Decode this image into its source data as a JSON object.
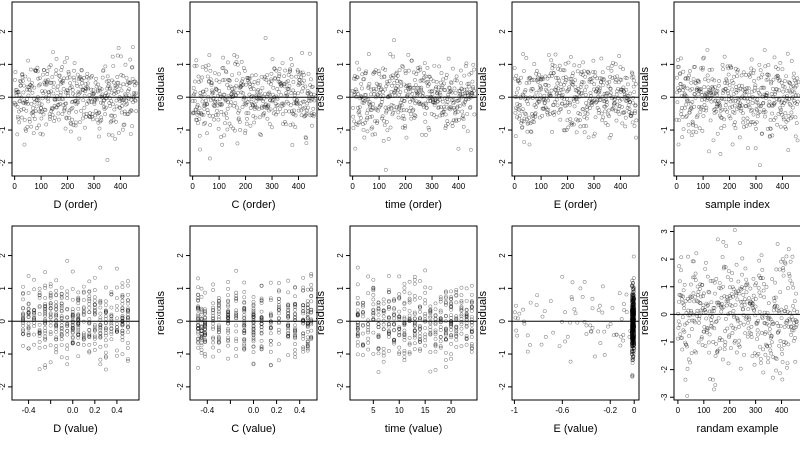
{
  "figure": {
    "rows": 2,
    "cols": 5,
    "point_color": "#000000",
    "point_opacity": 0.45,
    "frame_color": "#000000",
    "reference_line_y": 0
  },
  "chart_data": [
    {
      "type": "scatter",
      "xlabel": "D (order)",
      "ylabel": "residuals",
      "xlim": [
        -10,
        470
      ],
      "ylim": [
        -2.4,
        2.9
      ],
      "xticks": [
        0,
        100,
        200,
        300,
        400
      ],
      "yticks": [
        -2,
        -1,
        0,
        1,
        2
      ],
      "x_distribution": "uniform",
      "x_range": [
        0,
        460
      ],
      "n": 460
    },
    {
      "type": "scatter",
      "xlabel": "C (order)",
      "ylabel": "residuals",
      "xlim": [
        -10,
        470
      ],
      "ylim": [
        -2.4,
        2.9
      ],
      "xticks": [
        0,
        100,
        200,
        300,
        400
      ],
      "yticks": [
        -2,
        -1,
        0,
        1,
        2
      ],
      "x_distribution": "uniform",
      "x_range": [
        0,
        460
      ],
      "n": 460
    },
    {
      "type": "scatter",
      "xlabel": "time (order)",
      "ylabel": "residuals",
      "xlim": [
        -10,
        470
      ],
      "ylim": [
        -2.4,
        2.9
      ],
      "xticks": [
        0,
        100,
        200,
        300,
        400
      ],
      "yticks": [
        -2,
        -1,
        0,
        1,
        2
      ],
      "x_distribution": "uniform",
      "x_range": [
        0,
        460
      ],
      "n": 460
    },
    {
      "type": "scatter",
      "xlabel": "E (order)",
      "ylabel": "residuals",
      "xlim": [
        -10,
        470
      ],
      "ylim": [
        -2.4,
        2.9
      ],
      "xticks": [
        0,
        100,
        200,
        300,
        400
      ],
      "yticks": [
        -2,
        -1,
        0,
        1,
        2
      ],
      "x_distribution": "uniform",
      "x_range": [
        0,
        460
      ],
      "n": 460
    },
    {
      "type": "scatter",
      "xlabel": "sample index",
      "ylabel": "residuals",
      "xlim": [
        -10,
        470
      ],
      "ylim": [
        -2.4,
        2.9
      ],
      "xticks": [
        0,
        100,
        200,
        300,
        400
      ],
      "yticks": [
        -2,
        -1,
        0,
        1,
        2
      ],
      "x_distribution": "uniform",
      "x_range": [
        0,
        460
      ],
      "n": 460
    },
    {
      "type": "scatter",
      "xlabel": "D (value)",
      "ylabel": "residuals",
      "xlim": [
        -0.55,
        0.6
      ],
      "ylim": [
        -2.4,
        2.9
      ],
      "xticks": [
        -0.4,
        -0.2,
        0.0,
        0.2,
        0.4
      ],
      "xtick_labels": [
        "-0.4",
        "",
        "0.0",
        "0.2",
        "0.4"
      ],
      "yticks": [
        -2,
        -1,
        0,
        1,
        2
      ],
      "x_distribution": "levels",
      "x_levels": [
        -0.45,
        -0.4,
        -0.35,
        -0.3,
        -0.25,
        -0.2,
        -0.15,
        -0.1,
        -0.05,
        0.0,
        0.05,
        0.1,
        0.15,
        0.2,
        0.25,
        0.3,
        0.35,
        0.4,
        0.45,
        0.5
      ],
      "n": 460
    },
    {
      "type": "scatter",
      "xlabel": "C (value)",
      "ylabel": "residuals",
      "xlim": [
        -0.55,
        0.55
      ],
      "ylim": [
        -2.4,
        2.9
      ],
      "xticks": [
        -0.4,
        -0.2,
        0.0,
        0.2,
        0.4
      ],
      "xtick_labels": [
        "-0.4",
        "",
        "0.0",
        "0.2",
        "0.4"
      ],
      "yticks": [
        -2,
        -1,
        0,
        1,
        2
      ],
      "x_distribution": "levels",
      "x_levels": [
        -0.48,
        -0.45,
        -0.42,
        -0.35,
        -0.3,
        -0.22,
        -0.15,
        -0.08,
        0.0,
        0.07,
        0.15,
        0.22,
        0.3,
        0.36,
        0.43,
        0.47,
        0.5
      ],
      "n": 460
    },
    {
      "type": "scatter",
      "xlabel": "time (value)",
      "ylabel": "residuals",
      "xlim": [
        0.5,
        25
      ],
      "ylim": [
        -2.4,
        2.9
      ],
      "xticks": [
        5,
        10,
        15,
        20
      ],
      "yticks": [
        -2,
        -1,
        0,
        1,
        2
      ],
      "x_distribution": "levels",
      "x_levels": [
        2,
        3,
        4,
        5,
        6,
        7,
        8,
        9,
        10,
        11,
        12,
        13,
        14,
        15,
        16,
        17,
        18,
        19,
        20,
        21,
        22,
        23,
        24
      ],
      "n": 460
    },
    {
      "type": "scatter",
      "xlabel": "E (value)",
      "ylabel": "residuals",
      "xlim": [
        -1.02,
        0.04
      ],
      "ylim": [
        -2.4,
        2.9
      ],
      "xticks": [
        -1.0,
        -0.6,
        -0.2,
        0.0
      ],
      "yticks": [
        -2,
        -1,
        0,
        1,
        2
      ],
      "x_distribution": "skewed",
      "x_range": [
        -1.0,
        0.0
      ],
      "n": 460
    },
    {
      "type": "scatter",
      "xlabel": "randam example",
      "ylabel": "residuals",
      "xlim": [
        -15,
        475
      ],
      "ylim": [
        -3.1,
        3.2
      ],
      "xticks": [
        0,
        100,
        200,
        300,
        400
      ],
      "yticks": [
        -3,
        -2,
        -1,
        0,
        1,
        2,
        3
      ],
      "x_distribution": "uniform",
      "x_range": [
        0,
        460
      ],
      "n": 460
    }
  ]
}
